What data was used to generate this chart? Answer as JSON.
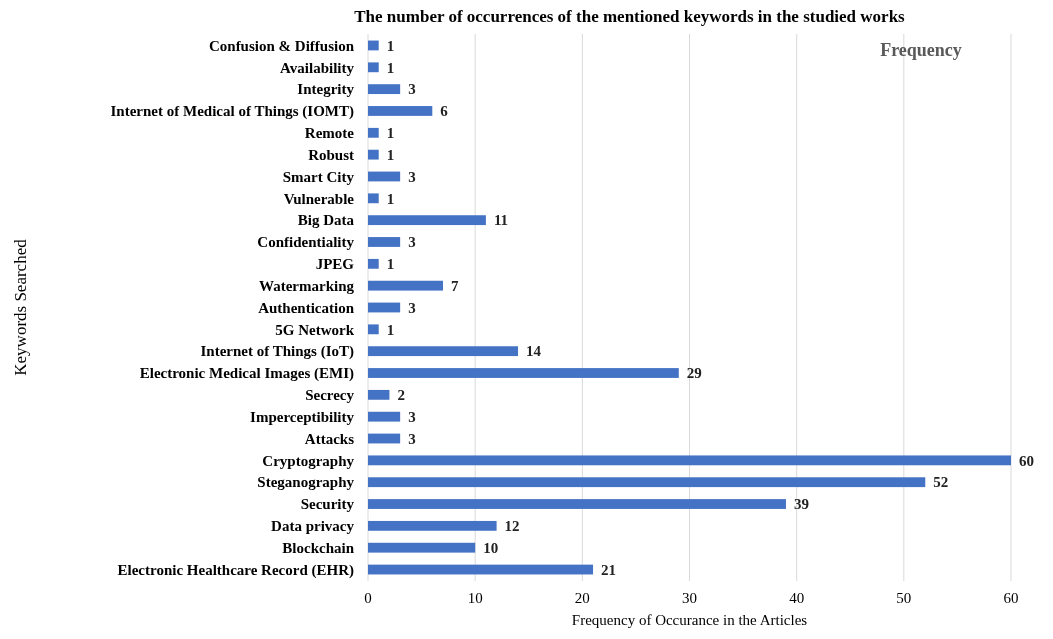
{
  "chart_data": {
    "type": "bar",
    "orientation": "horizontal",
    "title": "The number of occurrences of the mentioned keywords in the studied works",
    "subtitle": "Frequency",
    "xlabel": "Frequency of Occurance in the Articles",
    "ylabel": "Keywords Searched",
    "categories": [
      "Confusion & Diffusion",
      "Availability",
      "Integrity",
      "Internet of Medical of Things (IOMT)",
      "Remote",
      "Robust",
      "Smart City",
      "Vulnerable",
      "Big Data",
      "Confidentiality",
      "JPEG",
      "Watermarking",
      "Authentication",
      "5G Network",
      "Internet of Things (IoT)",
      "Electronic Medical Images (EMI)",
      "Secrecy",
      "Imperceptibility",
      "Attacks",
      "Cryptography",
      "Steganography",
      "Security",
      "Data privacy",
      "Blockchain",
      "Electronic Healthcare Record (EHR)"
    ],
    "values": [
      1,
      1,
      3,
      6,
      1,
      1,
      3,
      1,
      11,
      3,
      1,
      7,
      3,
      1,
      14,
      29,
      2,
      3,
      3,
      60,
      52,
      39,
      12,
      10,
      21
    ],
    "color": "#4472c4",
    "xlim": [
      0,
      60
    ],
    "xticks": [
      0,
      10,
      20,
      30,
      40,
      50,
      60
    ],
    "grid": "x",
    "data_labels": true
  }
}
